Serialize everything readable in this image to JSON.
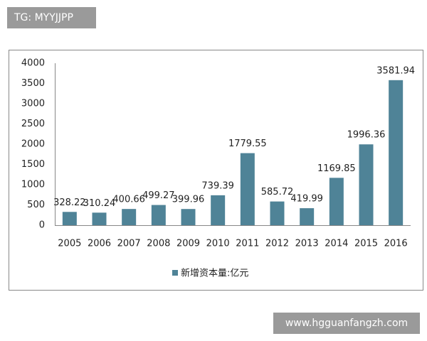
{
  "chart_data": {
    "type": "bar",
    "categories": [
      "2005",
      "2006",
      "2007",
      "2008",
      "2009",
      "2010",
      "2011",
      "2012",
      "2013",
      "2014",
      "2015",
      "2016"
    ],
    "series": [
      {
        "name": "新增资本量:亿元",
        "color": "#4f8397",
        "values": [
          328.22,
          310.24,
          400.66,
          499.27,
          399.96,
          739.39,
          1779.55,
          585.72,
          419.99,
          1169.85,
          1996.36,
          3581.94
        ]
      }
    ],
    "ylim": [
      0,
      4000
    ],
    "yticks": [
      0,
      500,
      1000,
      1500,
      2000,
      2500,
      3000,
      3500,
      4000
    ],
    "grid": false,
    "legend": "bottom"
  },
  "watermarks": {
    "top_left": "TG: MYYJJPP",
    "bottom_right": "www.hgguanfangzh.com"
  }
}
